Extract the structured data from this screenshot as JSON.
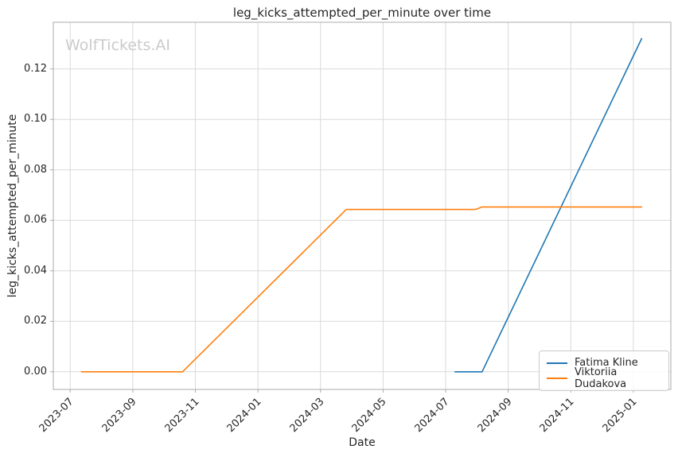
{
  "watermark": "WolfTickets.AI",
  "colors": {
    "blue": "#1f77b4",
    "orange": "#ff7f0e",
    "grid": "#d9d9d9",
    "spine": "#ababab",
    "text": "#262626",
    "watermark": "#cbcbcb"
  },
  "chart_data": {
    "type": "line",
    "title": "leg_kicks_attempted_per_minute over time",
    "xlabel": "Date",
    "ylabel": "leg_kicks_attempted_per_minute",
    "grid": true,
    "legend_position": "lower right",
    "x_ticks": [
      "2023-07",
      "2023-09",
      "2023-11",
      "2024-01",
      "2024-03",
      "2024-05",
      "2024-07",
      "2024-09",
      "2024-11",
      "2025-01"
    ],
    "y_ticks": [
      0.0,
      0.02,
      0.04,
      0.06,
      0.08,
      0.1,
      0.12
    ],
    "y_tick_labels": [
      "0.00",
      "0.02",
      "0.04",
      "0.06",
      "0.08",
      "0.10",
      "0.12"
    ],
    "xlim": [
      "2023-06-15",
      "2025-02-07"
    ],
    "ylim": [
      -0.007,
      0.1385
    ],
    "series": [
      {
        "name": "Fatima Kline",
        "color": "#1f77b4",
        "points": [
          [
            "2024-07-10",
            0.0
          ],
          [
            "2024-08-06",
            0.0
          ],
          [
            "2025-01-09",
            0.132
          ]
        ]
      },
      {
        "name": "Viktoriia Dudakova",
        "color": "#ff7f0e",
        "points": [
          [
            "2023-07-12",
            0.0
          ],
          [
            "2023-10-19",
            0.0
          ],
          [
            "2024-03-26",
            0.0643
          ],
          [
            "2024-07-30",
            0.0643
          ],
          [
            "2024-08-06",
            0.0653
          ],
          [
            "2025-01-09",
            0.0653
          ]
        ]
      }
    ]
  }
}
